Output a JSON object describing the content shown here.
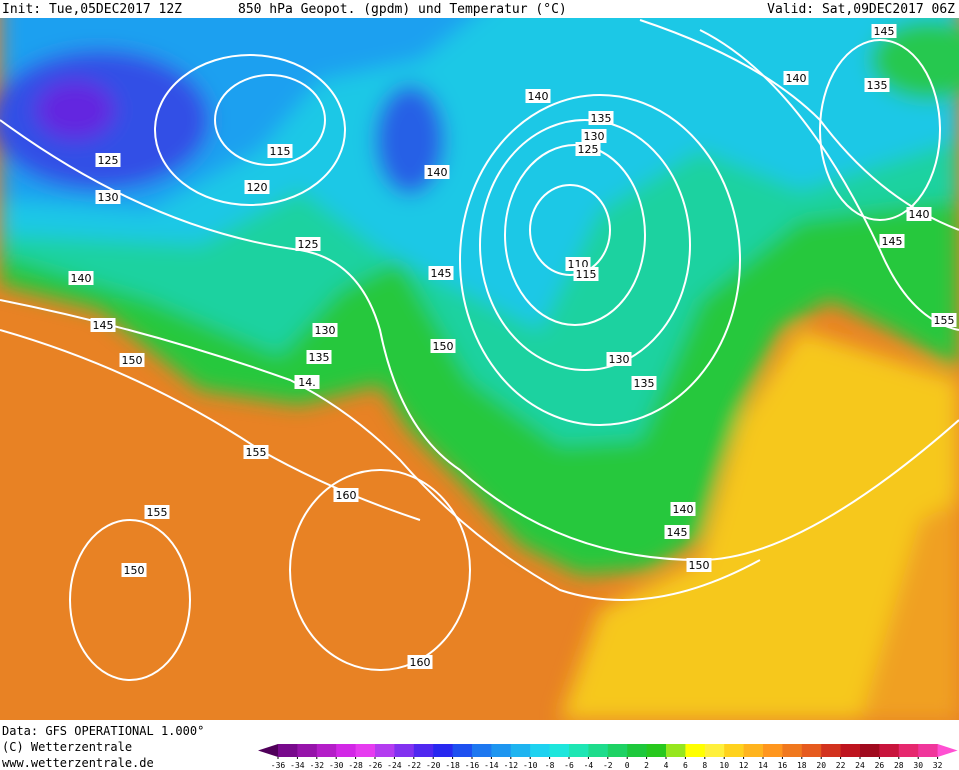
{
  "header": {
    "init": "Init: Tue,05DEC2017 12Z",
    "title": "850 hPa Geopot. (gpdm) und Temperatur (°C)",
    "valid": "Valid: Sat,09DEC2017 06Z"
  },
  "footer": {
    "source": "Data: GFS OPERATIONAL 1.000°",
    "copyright": "(C) Wetterzentrale",
    "url": "www.wetterzentrale.de"
  },
  "colorbar": {
    "labels": [
      -36,
      -34,
      -32,
      -30,
      -28,
      -26,
      -24,
      -22,
      -20,
      -18,
      -16,
      -14,
      -12,
      -10,
      -8,
      -6,
      -4,
      -2,
      0,
      2,
      4,
      6,
      8,
      10,
      12,
      14,
      16,
      18,
      20,
      22,
      24,
      26,
      28,
      30,
      32
    ],
    "colors": [
      "#50005a",
      "#780a8c",
      "#9614aa",
      "#b41ec8",
      "#d228e6",
      "#e63cf0",
      "#b43cf0",
      "#8232f0",
      "#5028f0",
      "#2828f0",
      "#1e50f0",
      "#1e78f0",
      "#1e96f0",
      "#1eb4f0",
      "#1ed2f0",
      "#1ee6dc",
      "#1ee6b4",
      "#1edc8c",
      "#1ed264",
      "#1ec83c",
      "#28c81e",
      "#96e61e",
      "#ffff00",
      "#fff03c",
      "#ffd21e",
      "#ffb41e",
      "#ff961e",
      "#f0781e",
      "#e65a1e",
      "#d2321e",
      "#be141e",
      "#a00a1e",
      "#c8143c",
      "#e6286e",
      "#f0369b",
      "#ff50d2"
    ]
  },
  "geopotential_labels": [
    125,
    130,
    120,
    115,
    140,
    145,
    150,
    125,
    130,
    135,
    "14.",
    140,
    135,
    130,
    125,
    140,
    145,
    150,
    110,
    115,
    130,
    135,
    140,
    145,
    150,
    155,
    160,
    155,
    150,
    160,
    145,
    140,
    135,
    140,
    145,
    155
  ]
}
